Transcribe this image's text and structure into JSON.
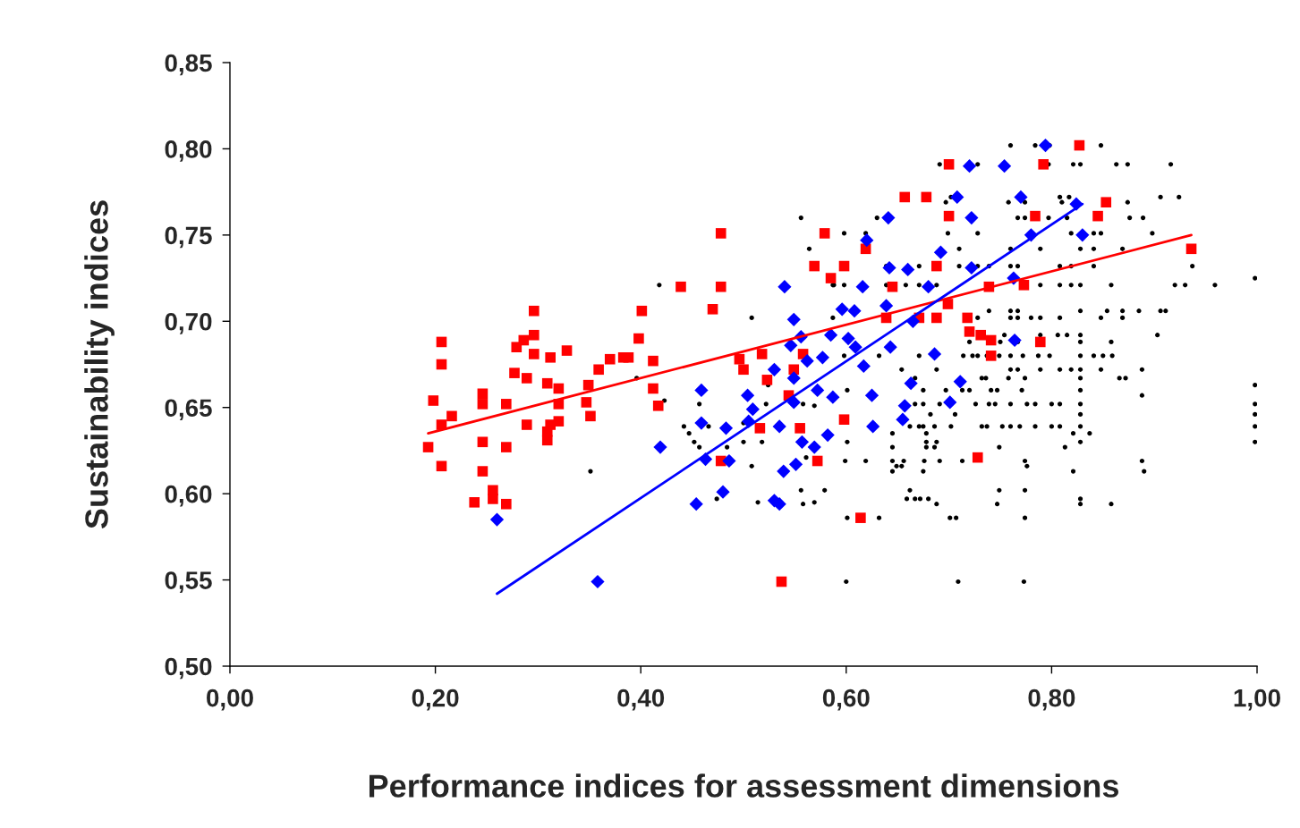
{
  "chart_data": {
    "type": "scatter",
    "xlabel": "Performance indices for assessment dimensions",
    "ylabel": "Sustainability indices",
    "xlim": [
      0,
      1
    ],
    "ylim": [
      0.5,
      0.85
    ],
    "xticks": [
      {
        "value": 0,
        "label": "0,00"
      },
      {
        "value": 0.2,
        "label": "0,20"
      },
      {
        "value": 0.4,
        "label": "0,40"
      },
      {
        "value": 0.6,
        "label": "0,60"
      },
      {
        "value": 0.8,
        "label": "0,80"
      },
      {
        "value": 1,
        "label": "1,00"
      }
    ],
    "yticks": [
      {
        "value": 0.5,
        "label": "0,50"
      },
      {
        "value": 0.55,
        "label": "0,55"
      },
      {
        "value": 0.6,
        "label": "0,60"
      },
      {
        "value": 0.65,
        "label": "0,65"
      },
      {
        "value": 0.7,
        "label": "0,70"
      },
      {
        "value": 0.75,
        "label": "0,75"
      },
      {
        "value": 0.8,
        "label": "0,80"
      },
      {
        "value": 0.85,
        "label": "0,85"
      }
    ],
    "grid": false,
    "legend": false,
    "series": [
      {
        "type": "scatter",
        "marker": "circle",
        "color": "#000000",
        "x": [
          0.76,
          0.784,
          0.798,
          0.848,
          0.691,
          0.728,
          0.797,
          0.821,
          0.828,
          0.863,
          0.874,
          0.916,
          0.702,
          0.808,
          0.817,
          0.906,
          0.924,
          0.697,
          0.758,
          0.774,
          0.81,
          0.874,
          0.63,
          0.767,
          0.774,
          0.797,
          0.815,
          0.876,
          0.889,
          0.598,
          0.619,
          0.699,
          0.728,
          0.819,
          0.841,
          0.848,
          0.898,
          0.71,
          0.76,
          0.789,
          0.828,
          0.841,
          0.869,
          0.639,
          0.671,
          0.71,
          0.728,
          0.739,
          0.76,
          0.767,
          0.808,
          0.819,
          0.841,
          0.937,
          0.588,
          0.598,
          0.639,
          0.658,
          0.671,
          0.688,
          0.789,
          0.808,
          0.819,
          0.828,
          0.858,
          0.92,
          0.93,
          0.959,
          0.998,
          0.739,
          0.76,
          0.767,
          0.828,
          0.854,
          0.869,
          0.885,
          0.906,
          0.911,
          0.728,
          0.76,
          0.767,
          0.78,
          0.789,
          0.808,
          0.848,
          0.869,
          0.754,
          0.789,
          0.806,
          0.815,
          0.828,
          0.903,
          0.72,
          0.75,
          0.767,
          0.828,
          0.858,
          0.598,
          0.632,
          0.671,
          0.714,
          0.723,
          0.728,
          0.737,
          0.749,
          0.76,
          0.772,
          0.787,
          0.798,
          0.828,
          0.841,
          0.85,
          0.859,
          0.654,
          0.688,
          0.76,
          0.767,
          0.789,
          0.808,
          0.819,
          0.828,
          0.848,
          0.888,
          0.667,
          0.732,
          0.736,
          0.758,
          0.774,
          0.828,
          0.866,
          0.872,
          0.998,
          0.601,
          0.675,
          0.697,
          0.713,
          0.72,
          0.741,
          0.747,
          0.771,
          0.828,
          0.888,
          0.667,
          0.675,
          0.691,
          0.726,
          0.739,
          0.745,
          0.76,
          0.776,
          0.784,
          0.8,
          0.808,
          0.828,
          0.998,
          0.682,
          0.706,
          0.828,
          0.998,
          0.662,
          0.671,
          0.675,
          0.686,
          0.702,
          0.732,
          0.737,
          0.752,
          0.76,
          0.769,
          0.784,
          0.8,
          0.808,
          0.828,
          0.998,
          0.645,
          0.678,
          0.821,
          0.837,
          0.601,
          0.678,
          0.688,
          0.828,
          0.998,
          0.645,
          0.678,
          0.686,
          0.749,
          0.813,
          0.599,
          0.619,
          0.645,
          0.656,
          0.676,
          0.691,
          0.713,
          0.774,
          0.888,
          0.649,
          0.654,
          0.776,
          0.645,
          0.675,
          0.821,
          0.89,
          0.662,
          0.749,
          0.774,
          0.659,
          0.667,
          0.672,
          0.68,
          0.828,
          0.688,
          0.747,
          0.828,
          0.858,
          0.601,
          0.632,
          0.701,
          0.707,
          0.774,
          0.6,
          0.709,
          0.773,
          0.418,
          0.556,
          0.564,
          0.508,
          0.396,
          0.423,
          0.351,
          0.457,
          0.442,
          0.447,
          0.452,
          0.457,
          0.466,
          0.5,
          0.484,
          0.5,
          0.518,
          0.508,
          0.522,
          0.474,
          0.514,
          0.556,
          0.558,
          0.569,
          0.579,
          0.561,
          0.569,
          0.558,
          0.524,
          0.587,
          0.587
        ],
        "values": [
          0.802,
          0.802,
          0.802,
          0.802,
          0.791,
          0.791,
          0.791,
          0.791,
          0.791,
          0.791,
          0.791,
          0.791,
          0.772,
          0.772,
          0.772,
          0.772,
          0.772,
          0.769,
          0.769,
          0.769,
          0.769,
          0.769,
          0.76,
          0.76,
          0.76,
          0.76,
          0.76,
          0.76,
          0.76,
          0.751,
          0.751,
          0.751,
          0.751,
          0.751,
          0.751,
          0.751,
          0.751,
          0.742,
          0.742,
          0.742,
          0.742,
          0.742,
          0.742,
          0.732,
          0.732,
          0.732,
          0.732,
          0.732,
          0.732,
          0.732,
          0.732,
          0.732,
          0.732,
          0.732,
          0.721,
          0.721,
          0.721,
          0.721,
          0.721,
          0.721,
          0.721,
          0.721,
          0.721,
          0.721,
          0.721,
          0.721,
          0.721,
          0.721,
          0.725,
          0.706,
          0.706,
          0.706,
          0.706,
          0.706,
          0.706,
          0.706,
          0.706,
          0.706,
          0.702,
          0.702,
          0.702,
          0.702,
          0.702,
          0.702,
          0.702,
          0.702,
          0.692,
          0.692,
          0.692,
          0.692,
          0.692,
          0.692,
          0.688,
          0.688,
          0.688,
          0.688,
          0.688,
          0.68,
          0.68,
          0.68,
          0.68,
          0.68,
          0.68,
          0.68,
          0.68,
          0.68,
          0.68,
          0.68,
          0.68,
          0.68,
          0.68,
          0.68,
          0.68,
          0.672,
          0.672,
          0.672,
          0.672,
          0.672,
          0.672,
          0.672,
          0.672,
          0.672,
          0.672,
          0.667,
          0.667,
          0.667,
          0.667,
          0.667,
          0.667,
          0.667,
          0.667,
          0.663,
          0.66,
          0.66,
          0.66,
          0.66,
          0.66,
          0.66,
          0.66,
          0.66,
          0.66,
          0.657,
          0.652,
          0.652,
          0.652,
          0.652,
          0.652,
          0.652,
          0.652,
          0.652,
          0.652,
          0.652,
          0.652,
          0.652,
          0.652,
          0.646,
          0.646,
          0.646,
          0.646,
          0.639,
          0.639,
          0.639,
          0.639,
          0.639,
          0.639,
          0.639,
          0.639,
          0.639,
          0.639,
          0.639,
          0.639,
          0.639,
          0.639,
          0.639,
          0.635,
          0.635,
          0.635,
          0.635,
          0.63,
          0.63,
          0.63,
          0.63,
          0.63,
          0.627,
          0.627,
          0.627,
          0.627,
          0.627,
          0.619,
          0.619,
          0.619,
          0.619,
          0.619,
          0.619,
          0.619,
          0.619,
          0.619,
          0.616,
          0.616,
          0.616,
          0.613,
          0.613,
          0.613,
          0.613,
          0.602,
          0.602,
          0.602,
          0.597,
          0.597,
          0.597,
          0.597,
          0.597,
          0.594,
          0.594,
          0.594,
          0.594,
          0.586,
          0.586,
          0.586,
          0.586,
          0.586,
          0.549,
          0.549,
          0.549,
          0.721,
          0.76,
          0.742,
          0.702,
          0.667,
          0.654,
          0.613,
          0.652,
          0.639,
          0.635,
          0.63,
          0.627,
          0.639,
          0.641,
          0.627,
          0.63,
          0.63,
          0.616,
          0.652,
          0.597,
          0.595,
          0.602,
          0.594,
          0.595,
          0.602,
          0.621,
          0.651,
          0.652,
          0.663,
          0.721,
          0.702
        ]
      },
      {
        "type": "scatter",
        "marker": "square",
        "color": "#ff0000",
        "x": [
          0.193,
          0.198,
          0.206,
          0.206,
          0.206,
          0.206,
          0.216,
          0.238,
          0.246,
          0.246,
          0.246,
          0.246,
          0.256,
          0.256,
          0.269,
          0.269,
          0.269,
          0.277,
          0.279,
          0.286,
          0.289,
          0.289,
          0.296,
          0.296,
          0.296,
          0.309,
          0.309,
          0.309,
          0.312,
          0.312,
          0.32,
          0.32,
          0.32,
          0.328,
          0.347,
          0.349,
          0.351,
          0.359,
          0.37,
          0.383,
          0.388,
          0.398,
          0.401,
          0.412,
          0.412,
          0.417,
          0.439,
          0.47,
          0.478,
          0.478,
          0.478,
          0.496,
          0.5,
          0.516,
          0.518,
          0.523,
          0.537,
          0.544,
          0.549,
          0.555,
          0.558,
          0.569,
          0.572,
          0.579,
          0.585,
          0.598,
          0.598,
          0.614,
          0.619,
          0.639,
          0.645,
          0.657,
          0.678,
          0.671,
          0.688,
          0.688,
          0.7,
          0.7,
          0.699,
          0.718,
          0.72,
          0.731,
          0.728,
          0.739,
          0.741,
          0.741,
          0.773,
          0.784,
          0.789,
          0.792,
          0.827,
          0.845,
          0.853,
          0.936
        ],
        "values": [
          0.627,
          0.654,
          0.688,
          0.675,
          0.64,
          0.616,
          0.645,
          0.595,
          0.658,
          0.652,
          0.63,
          0.613,
          0.602,
          0.597,
          0.652,
          0.627,
          0.594,
          0.67,
          0.685,
          0.689,
          0.667,
          0.64,
          0.706,
          0.692,
          0.681,
          0.664,
          0.636,
          0.631,
          0.679,
          0.64,
          0.661,
          0.652,
          0.642,
          0.683,
          0.653,
          0.663,
          0.645,
          0.672,
          0.678,
          0.679,
          0.679,
          0.69,
          0.706,
          0.677,
          0.661,
          0.651,
          0.72,
          0.707,
          0.751,
          0.72,
          0.619,
          0.678,
          0.672,
          0.638,
          0.681,
          0.666,
          0.549,
          0.657,
          0.672,
          0.638,
          0.681,
          0.732,
          0.619,
          0.751,
          0.725,
          0.732,
          0.643,
          0.586,
          0.742,
          0.702,
          0.72,
          0.772,
          0.772,
          0.702,
          0.732,
          0.702,
          0.791,
          0.761,
          0.71,
          0.702,
          0.694,
          0.692,
          0.621,
          0.72,
          0.689,
          0.68,
          0.721,
          0.761,
          0.688,
          0.791,
          0.802,
          0.761,
          0.769,
          0.742
        ]
      },
      {
        "type": "scatter",
        "marker": "diamond",
        "color": "#0000ff",
        "x": [
          0.26,
          0.358,
          0.419,
          0.454,
          0.459,
          0.459,
          0.463,
          0.48,
          0.483,
          0.486,
          0.504,
          0.509,
          0.505,
          0.53,
          0.53,
          0.535,
          0.535,
          0.539,
          0.54,
          0.546,
          0.549,
          0.549,
          0.549,
          0.551,
          0.556,
          0.557,
          0.562,
          0.569,
          0.572,
          0.577,
          0.582,
          0.585,
          0.587,
          0.596,
          0.602,
          0.608,
          0.609,
          0.617,
          0.616,
          0.62,
          0.626,
          0.625,
          0.639,
          0.642,
          0.641,
          0.643,
          0.655,
          0.66,
          0.663,
          0.657,
          0.665,
          0.68,
          0.686,
          0.692,
          0.701,
          0.708,
          0.711,
          0.72,
          0.722,
          0.722,
          0.754,
          0.77,
          0.764,
          0.763,
          0.78,
          0.794,
          0.824,
          0.83
        ],
        "values": [
          0.585,
          0.549,
          0.627,
          0.594,
          0.66,
          0.641,
          0.62,
          0.601,
          0.638,
          0.619,
          0.657,
          0.649,
          0.642,
          0.672,
          0.596,
          0.594,
          0.639,
          0.613,
          0.72,
          0.686,
          0.701,
          0.667,
          0.653,
          0.617,
          0.691,
          0.63,
          0.677,
          0.627,
          0.66,
          0.679,
          0.634,
          0.692,
          0.656,
          0.707,
          0.69,
          0.706,
          0.685,
          0.674,
          0.72,
          0.747,
          0.639,
          0.657,
          0.709,
          0.731,
          0.76,
          0.685,
          0.643,
          0.73,
          0.664,
          0.651,
          0.7,
          0.72,
          0.681,
          0.74,
          0.653,
          0.772,
          0.665,
          0.79,
          0.731,
          0.76,
          0.79,
          0.772,
          0.689,
          0.725,
          0.75,
          0.802,
          0.768,
          0.75
        ]
      },
      {
        "type": "line",
        "color": "#ff0000",
        "x": [
          0.193,
          0.936
        ],
        "values": [
          0.635,
          0.75
        ]
      },
      {
        "type": "line",
        "color": "#0000ff",
        "x": [
          0.26,
          0.83
        ],
        "values": [
          0.542,
          0.768
        ]
      }
    ]
  }
}
